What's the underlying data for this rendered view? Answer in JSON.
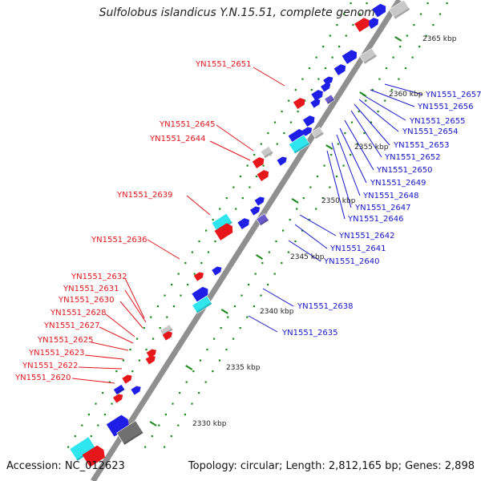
{
  "title": "Sulfolobus islandicus Y.N.15.51, complete genome",
  "accession_text": "Accession: NC_012623",
  "summary_text": "Topology: circular; Length: 2,812,165 bp; Genes: 2,898",
  "colors": {
    "backbone": "#8f8f8f",
    "forward": "#1e1ee6",
    "reverse": "#e6161b",
    "hypothetical": "#c8c8c8",
    "cyan": "#2fe6ee",
    "purple": "#6a5acd",
    "dark_gray": "#707070",
    "dot_green": "#1a8a1a",
    "left_label": "#e0161b",
    "right_label": "#1414c8"
  },
  "ticks": [
    "2365 kbp",
    "2360 kbp",
    "2355 kbp",
    "2350 kbp",
    "2345 kbp",
    "2340 kbp",
    "2335 kbp",
    "2330 kbp"
  ],
  "left_labels": [
    "YN1551_2651",
    "YN1551_2645",
    "YN1551_2644",
    "YN1551_2639",
    "YN1551_2636",
    "YN1551_2632",
    "YN1551_2631",
    "YN1551_2630",
    "YN1551_2628",
    "YN1551_2627",
    "YN1551_2625",
    "YN1551_2623",
    "YN1551_2622",
    "YN1551_2620"
  ],
  "right_labels": [
    "YN1551_2657",
    "YN1551_2656",
    "YN1551_2655",
    "YN1551_2654",
    "YN1551_2653",
    "YN1551_2652",
    "YN1551_2650",
    "YN1551_2649",
    "YN1551_2648",
    "YN1551_2647",
    "YN1551_2646",
    "YN1551_2642",
    "YN1551_2641",
    "YN1551_2640",
    "YN1551_2638",
    "YN1551_2635"
  ]
}
